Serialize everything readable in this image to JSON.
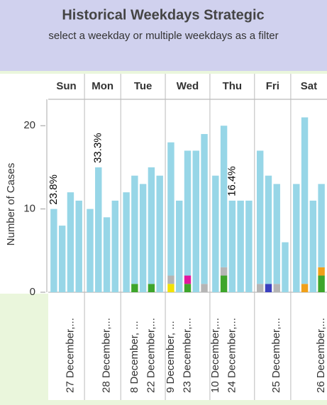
{
  "chart_data": {
    "type": "stacked_bar",
    "title": "Historical Weekdays Strategic",
    "subtitle": "select a weekday or multiple weekdays as a filter",
    "y_label": "Number of Cases",
    "ylim": [
      0,
      23
    ],
    "yticks": [
      0,
      10,
      20
    ],
    "groups": [
      {
        "label": "Sun",
        "categories": [
          null,
          null,
          "27 December,...",
          null
        ]
      },
      {
        "label": "Mon",
        "categories": [
          null,
          null,
          "28 December,...",
          null
        ]
      },
      {
        "label": "Tue",
        "categories": [
          null,
          "8 December, ...",
          null,
          "22 December,...",
          null
        ]
      },
      {
        "label": "Wed",
        "categories": [
          "9 December, ...",
          null,
          "23 December,...",
          null,
          null
        ]
      },
      {
        "label": "Thu",
        "categories": [
          "10 December,...",
          null,
          "24 December,...",
          null,
          null
        ]
      },
      {
        "label": "Fri",
        "categories": [
          null,
          null,
          "25 December,...",
          null
        ]
      },
      {
        "label": "Sat",
        "categories": [
          null,
          null,
          null,
          "26 December,..."
        ]
      }
    ],
    "series": [
      {
        "color": "#f2e205",
        "values": [
          null,
          null,
          null,
          null,
          null,
          null,
          null,
          null,
          null,
          null,
          null,
          null,
          null,
          1,
          null,
          null,
          null,
          null,
          null,
          null,
          null,
          null,
          null,
          null,
          null,
          null,
          null,
          null,
          null,
          null,
          null
        ]
      },
      {
        "color": "#3ea52b",
        "values": [
          null,
          null,
          null,
          null,
          null,
          null,
          null,
          null,
          null,
          1,
          null,
          1,
          null,
          null,
          null,
          1,
          null,
          null,
          null,
          2,
          null,
          null,
          null,
          null,
          null,
          null,
          null,
          null,
          null,
          null,
          2
        ]
      },
      {
        "color": "#f0a01a",
        "values": [
          null,
          null,
          null,
          null,
          null,
          null,
          null,
          null,
          null,
          null,
          null,
          null,
          null,
          null,
          null,
          null,
          null,
          null,
          null,
          null,
          null,
          null,
          null,
          null,
          null,
          null,
          null,
          null,
          1,
          null,
          1
        ]
      },
      {
        "color": "#3a3fbf",
        "values": [
          null,
          null,
          null,
          null,
          null,
          null,
          null,
          null,
          null,
          null,
          null,
          null,
          null,
          null,
          null,
          null,
          null,
          null,
          null,
          null,
          null,
          null,
          null,
          null,
          1,
          null,
          null,
          null,
          null,
          null,
          null
        ]
      },
      {
        "color": "#b5b5b5",
        "values": [
          null,
          null,
          null,
          null,
          null,
          null,
          null,
          null,
          null,
          null,
          null,
          null,
          null,
          1,
          null,
          null,
          null,
          1,
          null,
          1,
          null,
          null,
          null,
          1,
          null,
          1,
          null,
          null,
          null,
          null,
          null
        ]
      },
      {
        "color": "#e0179e",
        "values": [
          null,
          null,
          null,
          null,
          null,
          null,
          null,
          null,
          null,
          null,
          null,
          null,
          null,
          null,
          null,
          1,
          null,
          null,
          null,
          null,
          null,
          null,
          null,
          null,
          null,
          null,
          null,
          null,
          null,
          null,
          null
        ]
      },
      {
        "color": "#97d6e7",
        "values": [
          10,
          8,
          12,
          11,
          10,
          15,
          9,
          11,
          12,
          13,
          13,
          14,
          14,
          16,
          11,
          15,
          17,
          18,
          14,
          17,
          11,
          11,
          11,
          16,
          13,
          12,
          6,
          13,
          20,
          11,
          10
        ]
      }
    ],
    "bar_annotations": [
      "23.8%",
      null,
      null,
      null,
      null,
      "33.3%",
      null,
      null,
      null,
      null,
      null,
      null,
      null,
      null,
      null,
      null,
      null,
      null,
      null,
      null,
      "16.4%",
      null,
      null,
      null,
      null,
      null,
      null,
      null,
      null,
      null,
      null
    ]
  }
}
